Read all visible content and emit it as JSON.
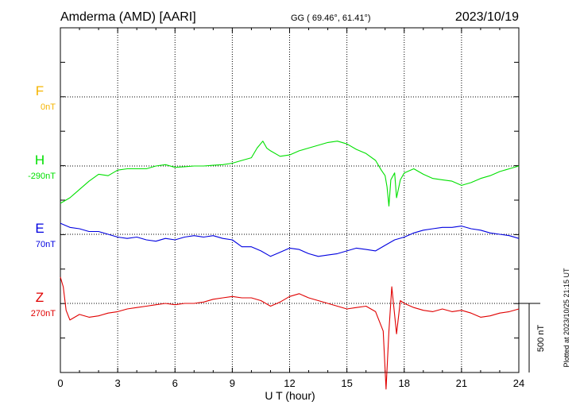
{
  "header": {
    "station": "Amderma (AMD)  [AARI]",
    "coords": "GG ( 69.46°,  61.41°)",
    "date": "2023/10/19"
  },
  "footer": {
    "plotted": "Plotted at 2023/10/25 21:15 UT",
    "scale_label": "500 nT"
  },
  "chart_data": {
    "type": "line",
    "xlabel": "U T (hour)",
    "xlim": [
      0,
      24
    ],
    "xticks": [
      0,
      3,
      6,
      9,
      12,
      15,
      18,
      21,
      24
    ],
    "scale_bar_nT": 500,
    "grid": true,
    "series": [
      {
        "name": "F",
        "baseline": "0nT",
        "color": "#f5b400",
        "x": [],
        "values": []
      },
      {
        "name": "H",
        "baseline": "-290nT",
        "color": "#00e000",
        "x": [
          0,
          0.25,
          0.5,
          0.75,
          1,
          1.5,
          2,
          2.5,
          3,
          3.5,
          4,
          4.5,
          5,
          5.5,
          6,
          6.5,
          7,
          7.5,
          8,
          8.5,
          9,
          9.5,
          10,
          10.3,
          10.6,
          10.8,
          11,
          11.5,
          12,
          12.5,
          13,
          13.5,
          14,
          14.5,
          15,
          15.5,
          16,
          16.5,
          16.8,
          17,
          17.1,
          17.2,
          17.3,
          17.5,
          17.6,
          17.8,
          18,
          18.5,
          19,
          19.5,
          20,
          20.5,
          21,
          21.5,
          22,
          22.5,
          23,
          23.5,
          24
        ],
        "values": [
          -270,
          -250,
          -230,
          -200,
          -170,
          -110,
          -60,
          -70,
          -30,
          -20,
          -20,
          -20,
          0,
          10,
          -10,
          -5,
          0,
          0,
          5,
          10,
          20,
          40,
          60,
          130,
          180,
          130,
          110,
          70,
          80,
          110,
          130,
          150,
          170,
          180,
          160,
          120,
          90,
          40,
          -30,
          -70,
          -150,
          -290,
          -100,
          -50,
          -230,
          -100,
          -50,
          -20,
          -60,
          -90,
          -100,
          -110,
          -140,
          -120,
          -90,
          -70,
          -40,
          -20,
          0
        ]
      },
      {
        "name": "E",
        "baseline": "70nT",
        "color": "#0000e0",
        "x": [
          0,
          0.5,
          1,
          1.5,
          2,
          2.5,
          3,
          3.5,
          4,
          4.5,
          5,
          5.5,
          6,
          6.5,
          7,
          7.5,
          8,
          8.5,
          9,
          9.5,
          10,
          10.5,
          11,
          11.5,
          12,
          12.5,
          13,
          13.5,
          14,
          14.5,
          15,
          15.5,
          16,
          16.5,
          17,
          17.5,
          18,
          18.5,
          19,
          19.5,
          20,
          20.5,
          21,
          21.5,
          22,
          22.5,
          23,
          23.5,
          24
        ],
        "values": [
          80,
          50,
          40,
          20,
          20,
          0,
          -20,
          -30,
          -20,
          -40,
          -50,
          -30,
          -40,
          -20,
          -10,
          -20,
          -10,
          -30,
          -40,
          -90,
          -90,
          -120,
          -160,
          -130,
          -100,
          -110,
          -140,
          -160,
          -150,
          -140,
          -120,
          -100,
          -110,
          -120,
          -80,
          -40,
          -20,
          10,
          30,
          40,
          50,
          50,
          60,
          40,
          30,
          10,
          0,
          -10,
          -30
        ]
      },
      {
        "name": "Z",
        "baseline": "270nT",
        "color": "#e00000",
        "x": [
          0,
          0.15,
          0.3,
          0.5,
          1,
          1.5,
          2,
          2.5,
          3,
          3.5,
          4,
          4.5,
          5,
          5.5,
          6,
          6.5,
          7,
          7.5,
          8,
          8.5,
          9,
          9.5,
          10,
          10.5,
          11,
          11.5,
          12,
          12.5,
          13,
          13.5,
          14,
          14.5,
          15,
          15.5,
          16,
          16.5,
          16.9,
          17.05,
          17.2,
          17.35,
          17.6,
          17.8,
          18,
          18.5,
          19,
          19.5,
          20,
          20.5,
          21,
          21.5,
          22,
          22.5,
          23,
          23.5,
          24
        ],
        "values": [
          190,
          120,
          -50,
          -120,
          -80,
          -100,
          -90,
          -70,
          -60,
          -40,
          -30,
          -20,
          -10,
          0,
          -10,
          0,
          0,
          10,
          30,
          40,
          50,
          40,
          40,
          20,
          -20,
          10,
          50,
          70,
          40,
          20,
          0,
          -20,
          -40,
          -30,
          -20,
          -60,
          -200,
          -620,
          -200,
          120,
          -220,
          20,
          0,
          -30,
          -50,
          -60,
          -40,
          -60,
          -50,
          -70,
          -100,
          -90,
          -70,
          -60,
          -40
        ]
      }
    ]
  }
}
